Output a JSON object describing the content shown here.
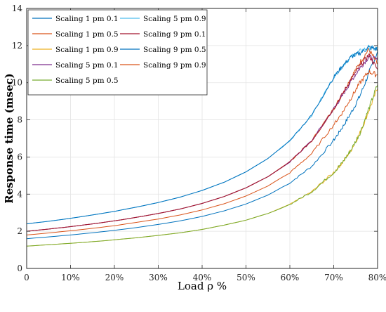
{
  "chart_data": {
    "type": "line",
    "title": "",
    "xlabel": "Load ρ %",
    "ylabel": "Response time (msec)",
    "xlim": [
      0,
      80
    ],
    "ylim": [
      0,
      14
    ],
    "grid": true,
    "legend_position": "top-left",
    "x_ticks": [
      0,
      10,
      20,
      30,
      40,
      50,
      60,
      70,
      80
    ],
    "x_tick_labels": [
      "0",
      "10%",
      "20%",
      "30%",
      "40%",
      "50%",
      "60%",
      "70%",
      "80%"
    ],
    "y_ticks": [
      0,
      2,
      4,
      6,
      8,
      10,
      12,
      14
    ],
    "y_tick_labels": [
      "0",
      "2",
      "4",
      "6",
      "8",
      "10",
      "12",
      "14"
    ],
    "x": [
      0,
      5,
      10,
      15,
      20,
      25,
      30,
      35,
      40,
      45,
      50,
      55,
      60,
      65,
      70,
      72,
      74,
      76,
      78,
      80
    ],
    "series": [
      {
        "name": "Scaling 1 pm 0.1",
        "color": "#0072BD",
        "values": [
          1.6,
          1.7,
          1.8,
          1.92,
          2.05,
          2.2,
          2.37,
          2.56,
          2.8,
          3.1,
          3.47,
          3.95,
          4.6,
          5.5,
          6.9,
          7.6,
          8.4,
          9.3,
          10.5,
          11.7
        ]
      },
      {
        "name": "Scaling 1 pm 0.5",
        "color": "#D95319",
        "values": [
          2.0,
          2.12,
          2.25,
          2.4,
          2.56,
          2.75,
          2.96,
          3.2,
          3.5,
          3.87,
          4.34,
          4.94,
          5.74,
          6.88,
          8.6,
          9.4,
          10.3,
          11.1,
          11.8,
          11.0
        ]
      },
      {
        "name": "Scaling 1 pm 0.9",
        "color": "#EDB120",
        "values": [
          1.2,
          1.28,
          1.35,
          1.44,
          1.54,
          1.65,
          1.78,
          1.92,
          2.1,
          2.33,
          2.6,
          2.96,
          3.44,
          4.13,
          5.17,
          5.7,
          6.4,
          7.3,
          8.5,
          9.7
        ]
      },
      {
        "name": "Scaling 5 pm 0.1",
        "color": "#7E2F8E",
        "values": [
          2.0,
          2.12,
          2.25,
          2.4,
          2.56,
          2.75,
          2.96,
          3.2,
          3.5,
          3.87,
          4.34,
          4.94,
          5.74,
          6.88,
          8.6,
          9.3,
          10.1,
          10.8,
          11.4,
          11.2
        ]
      },
      {
        "name": "Scaling 5 pm 0.5",
        "color": "#77AC30",
        "values": [
          1.2,
          1.28,
          1.35,
          1.44,
          1.54,
          1.65,
          1.78,
          1.92,
          2.1,
          2.33,
          2.6,
          2.96,
          3.44,
          4.13,
          5.17,
          5.7,
          6.4,
          7.3,
          8.6,
          9.9
        ]
      },
      {
        "name": "Scaling 5 pm 0.9",
        "color": "#4DBEEE",
        "values": [
          2.4,
          2.54,
          2.7,
          2.88,
          3.07,
          3.3,
          3.55,
          3.84,
          4.2,
          4.64,
          5.2,
          5.92,
          6.88,
          8.26,
          10.3,
          10.9,
          11.4,
          11.7,
          11.9,
          11.8
        ]
      },
      {
        "name": "Scaling 9 pm 0.1",
        "color": "#A2142F",
        "values": [
          2.0,
          2.12,
          2.25,
          2.4,
          2.56,
          2.75,
          2.96,
          3.2,
          3.5,
          3.87,
          4.34,
          4.94,
          5.74,
          6.88,
          8.6,
          9.4,
          10.2,
          10.9,
          11.5,
          10.7
        ]
      },
      {
        "name": "Scaling 9 pm 0.5",
        "color": "#0072BD",
        "values": [
          2.4,
          2.54,
          2.7,
          2.88,
          3.07,
          3.3,
          3.55,
          3.84,
          4.2,
          4.64,
          5.2,
          5.92,
          6.88,
          8.26,
          10.3,
          10.9,
          11.4,
          11.6,
          11.9,
          11.8
        ]
      },
      {
        "name": "Scaling 9 pm 0.9",
        "color": "#D95319",
        "values": [
          1.8,
          1.91,
          2.03,
          2.16,
          2.3,
          2.48,
          2.66,
          2.88,
          3.15,
          3.48,
          3.9,
          4.44,
          5.16,
          6.19,
          7.74,
          8.4,
          9.2,
          10.0,
          10.6,
          10.4
        ]
      }
    ]
  }
}
